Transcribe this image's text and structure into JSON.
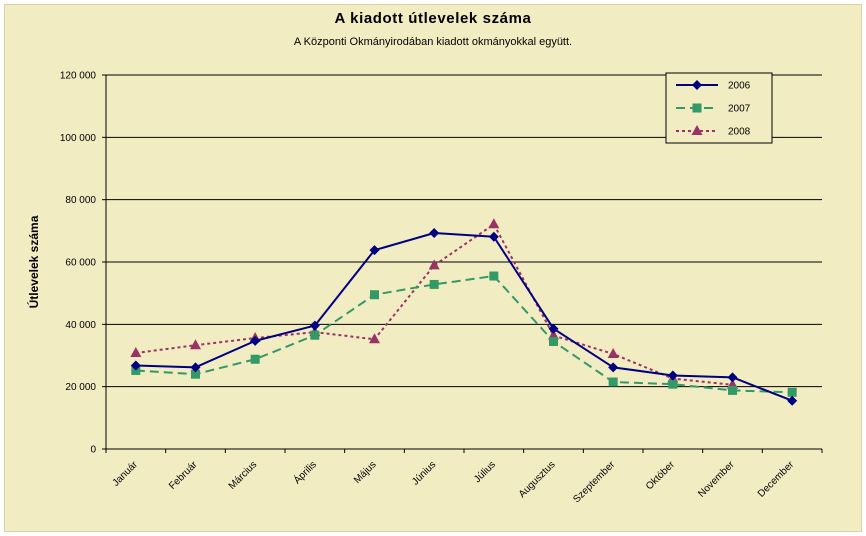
{
  "chart_data": {
    "type": "line",
    "title": "A  kiadott útlevelek száma",
    "subtitle": "A Központi Okmányirodában kiadott okmányokkal együtt.",
    "xlabel": "",
    "ylabel": "Útlevelek száma",
    "ylim": [
      0,
      120000
    ],
    "yticks": [
      0,
      20000,
      40000,
      60000,
      80000,
      100000,
      120000
    ],
    "ytick_labels": [
      "0",
      "20 000",
      "40 000",
      "60 000",
      "80 000",
      "100 000",
      "120 000"
    ],
    "grid": true,
    "legend_position": "top-right",
    "categories": [
      "Január",
      "Február",
      "Március",
      "Április",
      "Május",
      "Június",
      "Július",
      "Augusztus",
      "Szeptember",
      "Október",
      "November",
      "December"
    ],
    "series": [
      {
        "name": "2006",
        "color": "#000080",
        "line_style": "solid",
        "marker": "diamond",
        "values": [
          26800,
          26200,
          34700,
          39600,
          63800,
          69300,
          68100,
          38600,
          26200,
          23600,
          23000,
          15500
        ]
      },
      {
        "name": "2007",
        "color": "#339966",
        "line_style": "dashed",
        "marker": "square",
        "values": [
          25200,
          24000,
          28800,
          36500,
          49500,
          52800,
          55500,
          34500,
          21500,
          20800,
          18800,
          18200
        ]
      },
      {
        "name": "2008",
        "color": "#993366",
        "line_style": "dotted",
        "marker": "triangle",
        "values": [
          30800,
          33300,
          35600,
          37500,
          35200,
          58900,
          72100,
          36400,
          30500,
          22600,
          20600,
          null
        ]
      }
    ]
  }
}
